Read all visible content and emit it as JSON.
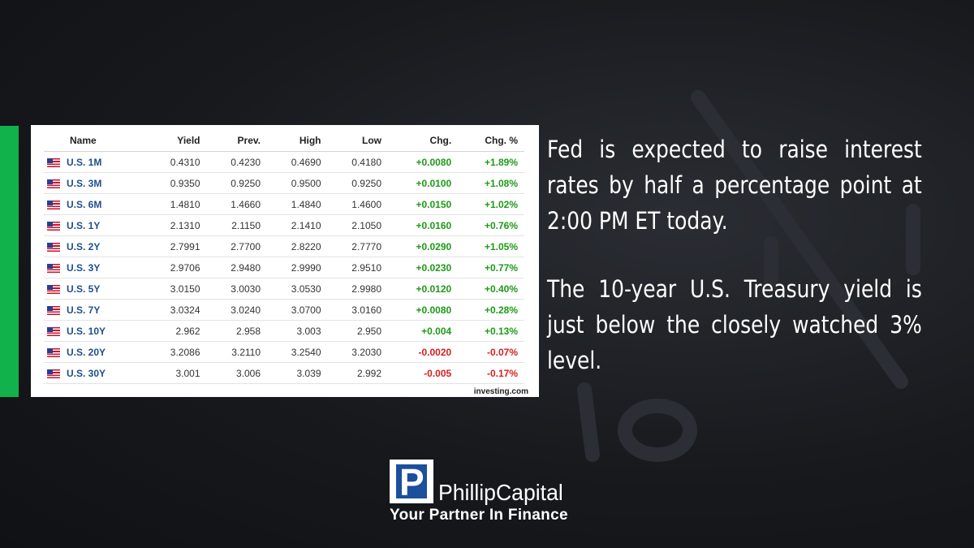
{
  "table": {
    "columns": [
      "Name",
      "Yield",
      "Prev.",
      "High",
      "Low",
      "Chg.",
      "Chg. %"
    ],
    "rows": [
      {
        "name": "U.S. 1M",
        "yield": "0.4310",
        "prev": "0.4230",
        "high": "0.4690",
        "low": "0.4180",
        "chg": "+0.0080",
        "chg_pct": "+1.89%",
        "dir": "up"
      },
      {
        "name": "U.S. 3M",
        "yield": "0.9350",
        "prev": "0.9250",
        "high": "0.9500",
        "low": "0.9250",
        "chg": "+0.0100",
        "chg_pct": "+1.08%",
        "dir": "up"
      },
      {
        "name": "U.S. 6M",
        "yield": "1.4810",
        "prev": "1.4660",
        "high": "1.4840",
        "low": "1.4600",
        "chg": "+0.0150",
        "chg_pct": "+1.02%",
        "dir": "up"
      },
      {
        "name": "U.S. 1Y",
        "yield": "2.1310",
        "prev": "2.1150",
        "high": "2.1410",
        "low": "2.1050",
        "chg": "+0.0160",
        "chg_pct": "+0.76%",
        "dir": "up"
      },
      {
        "name": "U.S. 2Y",
        "yield": "2.7991",
        "prev": "2.7700",
        "high": "2.8220",
        "low": "2.7770",
        "chg": "+0.0290",
        "chg_pct": "+1.05%",
        "dir": "up"
      },
      {
        "name": "U.S. 3Y",
        "yield": "2.9706",
        "prev": "2.9480",
        "high": "2.9990",
        "low": "2.9510",
        "chg": "+0.0230",
        "chg_pct": "+0.77%",
        "dir": "up"
      },
      {
        "name": "U.S. 5Y",
        "yield": "3.0150",
        "prev": "3.0030",
        "high": "3.0530",
        "low": "2.9980",
        "chg": "+0.0120",
        "chg_pct": "+0.40%",
        "dir": "up"
      },
      {
        "name": "U.S. 7Y",
        "yield": "3.0324",
        "prev": "3.0240",
        "high": "3.0700",
        "low": "3.0160",
        "chg": "+0.0080",
        "chg_pct": "+0.28%",
        "dir": "up"
      },
      {
        "name": "U.S. 10Y",
        "yield": "2.962",
        "prev": "2.958",
        "high": "3.003",
        "low": "2.950",
        "chg": "+0.004",
        "chg_pct": "+0.13%",
        "dir": "up"
      },
      {
        "name": "U.S. 20Y",
        "yield": "3.2086",
        "prev": "3.2110",
        "high": "3.2540",
        "low": "3.2030",
        "chg": "-0.0020",
        "chg_pct": "-0.07%",
        "dir": "down"
      },
      {
        "name": "U.S. 30Y",
        "yield": "3.001",
        "prev": "3.006",
        "high": "3.039",
        "low": "2.992",
        "chg": "-0.005",
        "chg_pct": "-0.17%",
        "dir": "down"
      }
    ],
    "source": "investing.com"
  },
  "commentary": {
    "paragraph_1": "Fed is expected to raise interest rates by half a percentage point at 2:00 PM ET today.",
    "paragraph_2": "The 10-year U.S. Treasury yield is just below the closely watched 3% level."
  },
  "brand": {
    "logo_letter": "P",
    "name": "PhillipCapital",
    "tagline": "Your Partner In Finance"
  },
  "colors": {
    "accent_green": "#11b24b",
    "up": "#1e9a17",
    "down": "#d41f1f",
    "instrument_link": "#1f4e8c",
    "logo_blue": "#1c4f9c"
  },
  "icons": {
    "row_flag": "us-flag-icon"
  }
}
